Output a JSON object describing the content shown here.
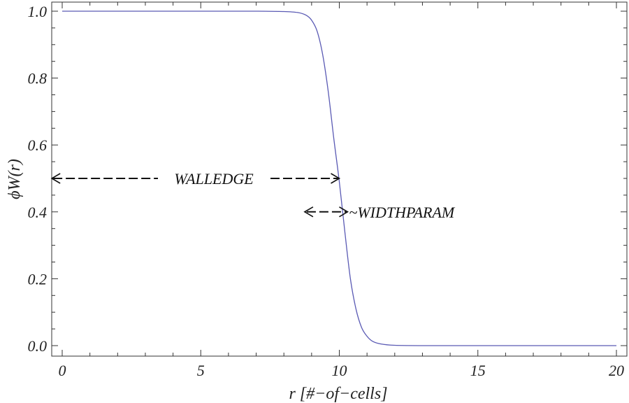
{
  "chart_data": {
    "type": "line",
    "title": "",
    "xlabel": "r [#−of−cells]",
    "ylabel": "ϕW(r)",
    "xlim": [
      -0.4,
      20.4
    ],
    "ylim": [
      -0.03,
      1.03
    ],
    "x_ticks": [
      0,
      5,
      10,
      15,
      20
    ],
    "x_tick_labels": [
      "0",
      "5",
      "10",
      "15",
      "20"
    ],
    "y_ticks": [
      0.0,
      0.2,
      0.4,
      0.6,
      0.8,
      1.0
    ],
    "y_tick_labels": [
      "0.0",
      "0.2",
      "0.4",
      "0.6",
      "0.8",
      "1.0"
    ],
    "grid": false,
    "series": [
      {
        "color": "#5a5ab4",
        "x": [
          0,
          1,
          2,
          3,
          4,
          5,
          6,
          7,
          8,
          8.5,
          8.8,
          9.0,
          9.2,
          9.4,
          9.6,
          9.8,
          10.0,
          10.2,
          10.4,
          10.6,
          10.8,
          11.0,
          11.2,
          11.5,
          12,
          13,
          15,
          20
        ],
        "y": [
          1.0,
          1.0,
          1.0,
          1.0,
          1.0,
          1.0,
          1.0,
          1.0,
          0.999,
          0.996,
          0.988,
          0.973,
          0.94,
          0.87,
          0.76,
          0.62,
          0.49,
          0.34,
          0.2,
          0.11,
          0.055,
          0.028,
          0.013,
          0.005,
          0.001,
          0.0,
          0.0,
          0.0
        ]
      }
    ],
    "annotations": [
      {
        "text": "WALLEDGE",
        "arrow": "double",
        "from_x": -0.4,
        "to_x": 10.0,
        "y": 0.5
      },
      {
        "text": "~WIDTHPARAM",
        "arrow": "double",
        "from_x": 8.8,
        "to_x": 10.2,
        "y": 0.4
      }
    ]
  }
}
